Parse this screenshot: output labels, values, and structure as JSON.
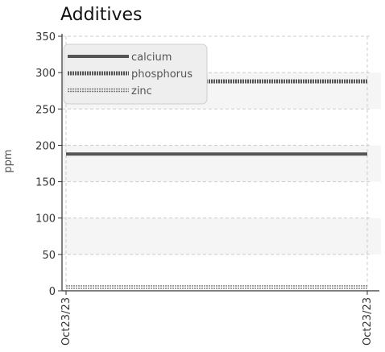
{
  "chart_data": {
    "type": "line",
    "title": "Additives",
    "xlabel": "",
    "ylabel": "ppm",
    "ylim": [
      0,
      350
    ],
    "yticks": [
      0,
      50,
      100,
      150,
      200,
      250,
      300,
      350
    ],
    "ytick_labels": [
      "0",
      "50",
      "100",
      "150",
      "200",
      "250",
      "300",
      "350"
    ],
    "categories": [
      "Oct23/23",
      "Oct23/23"
    ],
    "grid": true,
    "legend_position": "top-left",
    "series": [
      {
        "name": "calcium",
        "values": [
          188,
          188
        ],
        "color": "#555555",
        "style": "solid"
      },
      {
        "name": "phosphorus",
        "values": [
          288,
          288
        ],
        "color": "#555555",
        "style": "dotted"
      },
      {
        "name": "zinc",
        "values": [
          5,
          5
        ],
        "color": "#777777",
        "style": "double-dotted"
      }
    ]
  }
}
